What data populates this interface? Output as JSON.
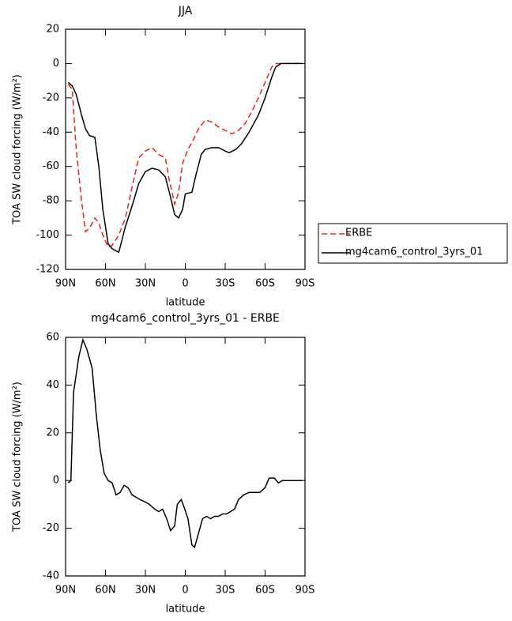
{
  "chart_data": [
    {
      "type": "line",
      "title": "JJA",
      "x_label": "latitude",
      "y_label": "TOA SW cloud forcing (W/m²)",
      "xlim": [
        90,
        -90
      ],
      "xticks": [
        {
          "value": 90,
          "label": "90N"
        },
        {
          "value": 60,
          "label": "60N"
        },
        {
          "value": 30,
          "label": "30N"
        },
        0,
        {
          "value": -30,
          "label": "30S"
        },
        {
          "value": -60,
          "label": "60S"
        },
        {
          "value": -90,
          "label": "90S"
        }
      ],
      "ylim": [
        -120,
        20
      ],
      "yticks": [
        20,
        0,
        -20,
        -40,
        -60,
        -80,
        -100,
        -120
      ],
      "legend": "right",
      "series": [
        {
          "name": "ERBE",
          "color": "#e8231f",
          "linestyle": "dashed",
          "x": [
            88,
            85,
            82,
            78,
            75,
            72,
            68,
            65,
            62,
            58,
            55,
            50,
            45,
            40,
            35,
            30,
            25,
            20,
            15,
            12,
            8,
            5,
            2,
            -2,
            -5,
            -10,
            -15,
            -20,
            -25,
            -30,
            -35,
            -40,
            -45,
            -50,
            -55,
            -60,
            -65,
            -68,
            -75,
            -80,
            -88
          ],
          "values": [
            -12,
            -15,
            -50,
            -80,
            -98,
            -96,
            -90,
            -93,
            -100,
            -107,
            -106,
            -100,
            -90,
            -72,
            -55,
            -51,
            -49,
            -53,
            -55,
            -68,
            -82,
            -75,
            -58,
            -50,
            -46,
            -38,
            -33,
            -34,
            -37,
            -39,
            -41,
            -39,
            -35,
            -28,
            -20,
            -11,
            -2,
            0,
            0,
            0,
            0
          ]
        },
        {
          "name": "mg4cam6_control_3yrs_01",
          "color": "#000000",
          "linestyle": "solid",
          "x": [
            88,
            85,
            82,
            78,
            75,
            72,
            68,
            65,
            62,
            58,
            55,
            50,
            45,
            40,
            35,
            30,
            25,
            20,
            15,
            12,
            8,
            5,
            2,
            0,
            -5,
            -8,
            -12,
            -15,
            -20,
            -25,
            -30,
            -33,
            -38,
            -42,
            -48,
            -55,
            -60,
            -65,
            -68,
            -72,
            -80,
            -88
          ],
          "values": [
            -11,
            -13,
            -18,
            -30,
            -38,
            -42,
            -43,
            -60,
            -85,
            -105,
            -108,
            -110,
            -95,
            -83,
            -70,
            -63,
            -61,
            -62,
            -66,
            -75,
            -88,
            -90,
            -85,
            -76,
            -75,
            -65,
            -53,
            -50,
            -49,
            -49,
            -51,
            -52,
            -50,
            -47,
            -40,
            -30,
            -20,
            -8,
            -2,
            0,
            0,
            0
          ]
        }
      ]
    },
    {
      "type": "line",
      "title": "mg4cam6_control_3yrs_01 - ERBE",
      "x_label": "latitude",
      "y_label": "TOA SW cloud forcing (W/m²)",
      "xlim": [
        90,
        -90
      ],
      "xticks": [
        {
          "value": 90,
          "label": "90N"
        },
        {
          "value": 60,
          "label": "60N"
        },
        {
          "value": 30,
          "label": "30N"
        },
        0,
        {
          "value": -30,
          "label": "30S"
        },
        {
          "value": -60,
          "label": "60S"
        },
        {
          "value": -90,
          "label": "90S"
        }
      ],
      "ylim": [
        -40,
        60
      ],
      "yticks": [
        60,
        40,
        20,
        0,
        -20,
        -40
      ],
      "series": [
        {
          "color": "#000000",
          "linestyle": "solid",
          "x": [
            88,
            86,
            84,
            80,
            77,
            74,
            70,
            67,
            64,
            61,
            58,
            55,
            52,
            49,
            46,
            43,
            40,
            37,
            34,
            30,
            27,
            23,
            20,
            17,
            14,
            11,
            8,
            6,
            3,
            1,
            -2,
            -5,
            -7,
            -10,
            -13,
            -16,
            -19,
            -22,
            -25,
            -28,
            -31,
            -34,
            -37,
            -40,
            -44,
            -48,
            -52,
            -56,
            -60,
            -63,
            -67,
            -70,
            -73,
            -77,
            -80,
            -84,
            -88
          ],
          "values": [
            -1,
            0,
            37,
            52,
            59,
            55,
            47,
            28,
            13,
            3,
            0,
            -1,
            -6,
            -5,
            -2,
            -3,
            -6,
            -7,
            -8,
            -9,
            -10,
            -12,
            -13,
            -12,
            -16,
            -21,
            -19,
            -10,
            -8,
            -11,
            -16,
            -27,
            -28,
            -22,
            -16,
            -15,
            -16,
            -15,
            -15,
            -14,
            -14,
            -13,
            -12,
            -8,
            -6,
            -5,
            -5,
            -5,
            -3,
            1,
            1,
            -1,
            0,
            0,
            0,
            0,
            0
          ]
        }
      ]
    }
  ]
}
